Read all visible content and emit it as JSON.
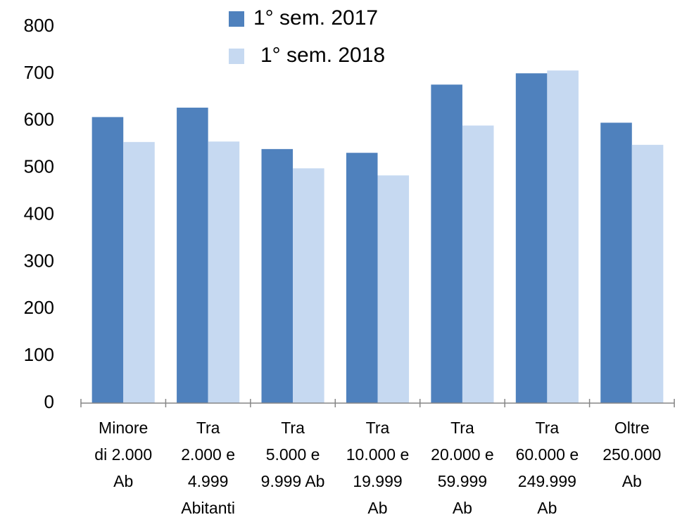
{
  "chart_data": {
    "type": "bar",
    "categories": [
      "Minore\ndi 2.000\nAb",
      "Tra\n2.000 e\n4.999\nAbitanti",
      "Tra\n5.000 e\n9.999 Ab",
      "Tra\n10.000 e\n19.999\nAb",
      "Tra\n20.000 e\n59.999\nAb",
      "Tra\n60.000 e\n249.999\nAb",
      "Oltre\n250.000\nAb"
    ],
    "series": [
      {
        "name": "1° sem. 2017",
        "color": "#4f81bd",
        "values": [
          608,
          628,
          540,
          532,
          677,
          701,
          596
        ]
      },
      {
        "name": "1° sem. 2018",
        "color": "#c6d9f1",
        "values": [
          555,
          556,
          499,
          484,
          590,
          707,
          549
        ]
      }
    ],
    "ylim": [
      0,
      800
    ],
    "yticks": [
      0,
      100,
      200,
      300,
      400,
      500,
      600,
      700,
      800
    ],
    "grid": false,
    "legend": "top"
  }
}
